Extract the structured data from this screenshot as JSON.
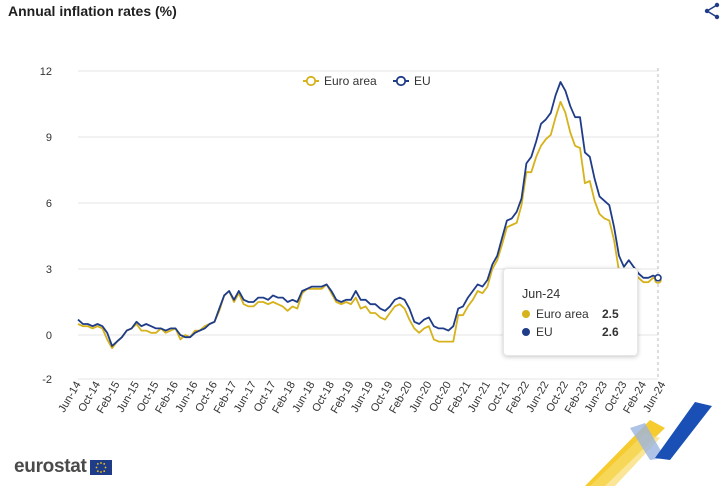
{
  "header": {
    "title": "Annual inflation rates (%)"
  },
  "footer": {
    "logo_text": "eurostat"
  },
  "icons": {
    "share": "share-icon",
    "eu_flag": "eu-flag-icon"
  },
  "colors": {
    "euro_area": "#d6b21b",
    "eu": "#1f3c88",
    "grid": "#e4e4e4",
    "deco_blue": "#1a50b5",
    "deco_yellow": "#f4c51a"
  },
  "tooltip": {
    "date": "Jun-24",
    "rows": [
      {
        "name": "Euro area",
        "value": "2.5"
      },
      {
        "name": "EU",
        "value": "2.6"
      }
    ]
  },
  "chart_data": {
    "type": "line",
    "title": "Annual inflation rates (%)",
    "xlabel": "",
    "ylabel": "",
    "ylim": [
      -2,
      12
    ],
    "yticks": [
      12,
      9,
      6,
      3,
      0,
      -2
    ],
    "grid": true,
    "legend": "top-center",
    "x_start": "Jun-14",
    "x_tick_labels": [
      "Jun-14",
      "Oct-14",
      "Feb-15",
      "Jun-15",
      "Oct-15",
      "Feb-16",
      "Jun-16",
      "Oct-16",
      "Feb-17",
      "Jun-17",
      "Oct-17",
      "Feb-18",
      "Jun-18",
      "Oct-18",
      "Feb-19",
      "Jun-19",
      "Oct-19",
      "Feb-20",
      "Jun-20",
      "Oct-20",
      "Feb-21",
      "Jun-21",
      "Oct-21",
      "Feb-22",
      "Jun-22",
      "Oct-22",
      "Feb-23",
      "Jun-23",
      "Oct-23",
      "Feb-24",
      "Jun-24"
    ],
    "series": [
      {
        "name": "Euro area",
        "values": [
          0.5,
          0.4,
          0.4,
          0.3,
          0.4,
          0.3,
          -0.2,
          -0.6,
          -0.3,
          -0.1,
          0.2,
          0.3,
          0.5,
          0.2,
          0.2,
          0.1,
          0.1,
          0.3,
          0.1,
          0.2,
          0.3,
          -0.2,
          0,
          -0.1,
          0.2,
          0.2,
          0.4,
          0.5,
          0.6,
          1.1,
          1.8,
          2.0,
          1.5,
          1.9,
          1.4,
          1.3,
          1.3,
          1.5,
          1.5,
          1.4,
          1.5,
          1.4,
          1.3,
          1.1,
          1.3,
          1.2,
          1.9,
          2.1,
          2.1,
          2.1,
          2.1,
          2.3,
          1.9,
          1.5,
          1.4,
          1.5,
          1.4,
          1.7,
          1.2,
          1.3,
          1.0,
          1.0,
          0.8,
          0.7,
          1.0,
          1.3,
          1.4,
          1.2,
          0.7,
          0.3,
          0.1,
          0.3,
          0.4,
          -0.2,
          -0.3,
          -0.3,
          -0.3,
          -0.3,
          0.9,
          0.9,
          1.3,
          1.6,
          2.0,
          1.9,
          2.2,
          3.0,
          3.4,
          4.1,
          4.9,
          5.0,
          5.1,
          5.9,
          7.4,
          7.4,
          8.1,
          8.6,
          8.9,
          9.1,
          9.9,
          10.6,
          10.1,
          9.2,
          8.6,
          8.5,
          6.9,
          7.0,
          6.1,
          5.5,
          5.3,
          5.2,
          4.3,
          2.9,
          2.4,
          2.9,
          2.8,
          2.6,
          2.4,
          2.4,
          2.6,
          2.5
        ],
        "color": "#d6b21b"
      },
      {
        "name": "EU",
        "values": [
          0.7,
          0.5,
          0.5,
          0.4,
          0.5,
          0.4,
          0.1,
          -0.5,
          -0.3,
          -0.1,
          0.2,
          0.3,
          0.6,
          0.4,
          0.5,
          0.4,
          0.3,
          0.3,
          0.2,
          0.3,
          0.3,
          0,
          -0.1,
          -0.1,
          0.1,
          0.2,
          0.3,
          0.5,
          0.6,
          1.2,
          1.8,
          2.0,
          1.6,
          2.0,
          1.6,
          1.5,
          1.5,
          1.7,
          1.7,
          1.6,
          1.8,
          1.7,
          1.7,
          1.5,
          1.6,
          1.5,
          2.0,
          2.1,
          2.2,
          2.2,
          2.2,
          2.3,
          2.0,
          1.6,
          1.5,
          1.6,
          1.6,
          2.0,
          1.6,
          1.6,
          1.4,
          1.4,
          1.2,
          1.1,
          1.3,
          1.6,
          1.7,
          1.6,
          1.2,
          0.6,
          0.5,
          0.7,
          0.8,
          0.4,
          0.3,
          0.3,
          0.2,
          0.4,
          1.2,
          1.3,
          1.7,
          2.0,
          2.3,
          2.2,
          2.5,
          3.2,
          3.6,
          4.4,
          5.2,
          5.3,
          5.6,
          6.2,
          7.8,
          8.1,
          8.8,
          9.6,
          9.8,
          10.1,
          10.9,
          11.5,
          11.1,
          10.4,
          9.9,
          9.9,
          8.3,
          8.1,
          7.1,
          6.3,
          6.1,
          5.9,
          4.9,
          3.6,
          3.1,
          3.4,
          3.1,
          2.8,
          2.6,
          2.6,
          2.7,
          2.6
        ],
        "color": "#1f3c88"
      }
    ]
  }
}
